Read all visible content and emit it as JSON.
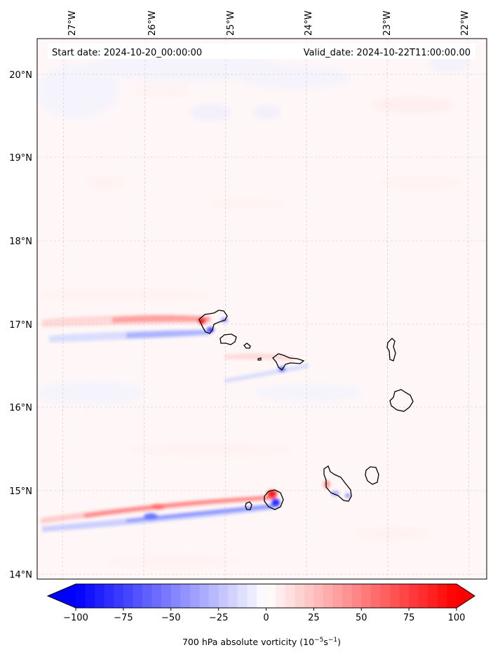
{
  "map": {
    "start_label": "Start date: 2024-10-20_00:00:00",
    "valid_label": "Valid_date: 2024-10-22T11:00:00.00",
    "lon_ticks": [
      "27°W",
      "26°W",
      "25°W",
      "24°W",
      "23°W",
      "22°W"
    ],
    "lat_ticks": [
      "20°N",
      "19°N",
      "18°N",
      "17°N",
      "16°N",
      "15°N",
      "14°N"
    ],
    "islands": [
      "Santo Antão",
      "São Vicente",
      "Santa Luzia",
      "Ilhéu Raso",
      "São Nicolau",
      "Sal",
      "Boa Vista",
      "Brava",
      "Fogo",
      "Santiago",
      "Maio"
    ]
  },
  "colorbar": {
    "ticks": [
      "−100",
      "−75",
      "−50",
      "−25",
      "0",
      "25",
      "50",
      "75",
      "100"
    ],
    "vmin": -100,
    "vmax": 100,
    "label_prefix": "700 hPa absolute vorticity (10",
    "label_exp1": "−5",
    "label_mid": "s",
    "label_exp2": "−1",
    "label_suffix": ")",
    "colors": {
      "negative": "#0000ff",
      "neutral": "#ffffff",
      "positive": "#ff0000"
    },
    "extend": "both"
  },
  "colors": {
    "negative": "#0000ff",
    "positive": "#ff0000",
    "background_tint": "#fff6f6"
  }
}
